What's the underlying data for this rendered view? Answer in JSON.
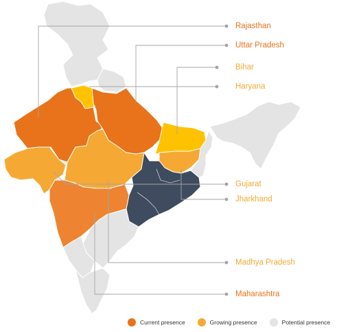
{
  "colors": {
    "current": "#E8731A",
    "growing": "#F5A934",
    "potential": "#E4E4E4",
    "highlight": "#3F4B5E",
    "bihar": "#FFC200",
    "maharashtra": "#EE8431",
    "leader": "#999999"
  },
  "labels": [
    {
      "id": "rajasthan",
      "text": "Rajasthan",
      "status": "current"
    },
    {
      "id": "uttar-pradesh",
      "text": "Uttar Pradesh",
      "status": "current"
    },
    {
      "id": "bihar",
      "text": "Bihar",
      "status": "growing"
    },
    {
      "id": "haryana",
      "text": "Haryana",
      "status": "growing"
    },
    {
      "id": "gujarat",
      "text": "Gujarat",
      "status": "growing"
    },
    {
      "id": "jharkhand",
      "text": "Jharkhand",
      "status": "growing"
    },
    {
      "id": "madhya-pradesh",
      "text": "Madhya Pradesh",
      "status": "growing"
    },
    {
      "id": "maharashtra",
      "text": "Maharashtra",
      "status": "current"
    }
  ],
  "legend": {
    "current": "Current presence",
    "growing": "Growing presence",
    "potential": "Potential presence"
  }
}
